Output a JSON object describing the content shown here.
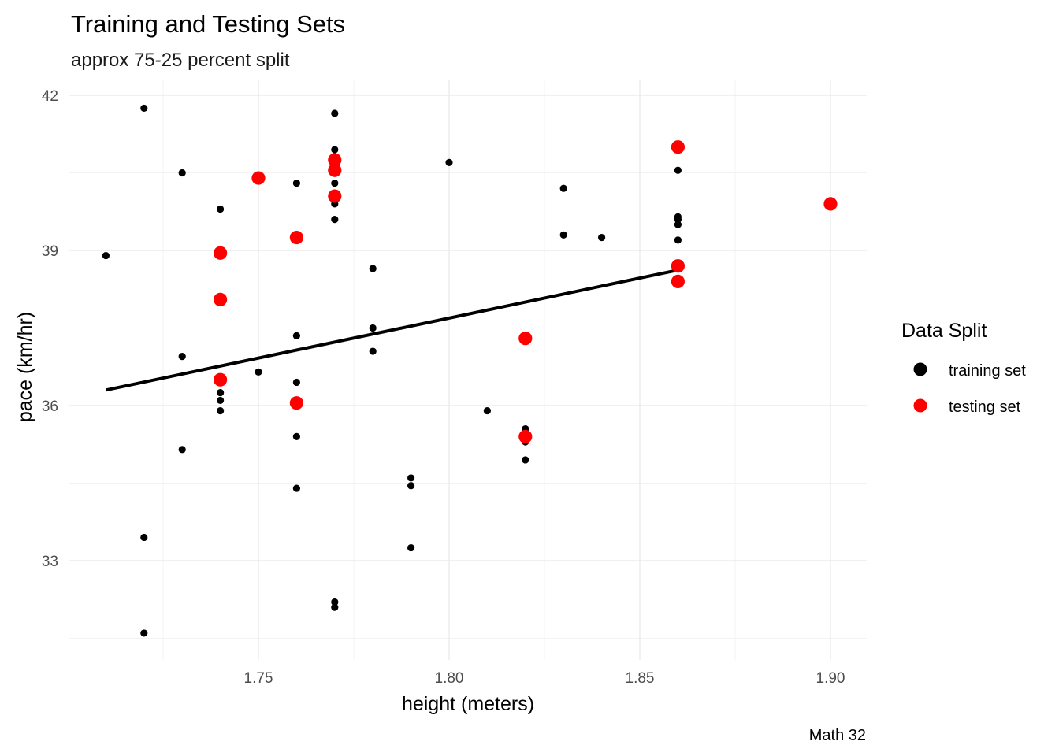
{
  "chart_data": {
    "type": "scatter",
    "title": "Training and Testing Sets",
    "subtitle": "approx 75-25 percent split",
    "xlabel": "height (meters)",
    "ylabel": "pace (km/hr)",
    "caption": "Math 32",
    "xlim": [
      1.708,
      1.918
    ],
    "ylim": [
      31.1,
      42.0
    ],
    "x_ticks": [
      1.75,
      1.8,
      1.85,
      1.9
    ],
    "x_tick_labels": [
      "1.75",
      "1.80",
      "1.85",
      "1.90"
    ],
    "y_ticks": [
      33,
      36,
      39,
      42
    ],
    "y_tick_labels": [
      "33",
      "36",
      "39",
      "42"
    ],
    "grid": true,
    "legend": {
      "title": "Data Split",
      "placement": "right",
      "entries": [
        {
          "label": "training set",
          "color": "#000000"
        },
        {
          "label": "testing set",
          "color": "#ff0000"
        }
      ]
    },
    "series": [
      {
        "name": "training set",
        "color": "#000000",
        "points": [
          [
            1.71,
            38.9
          ],
          [
            1.72,
            41.75
          ],
          [
            1.72,
            33.45
          ],
          [
            1.72,
            31.6
          ],
          [
            1.73,
            40.5
          ],
          [
            1.73,
            36.95
          ],
          [
            1.73,
            35.15
          ],
          [
            1.74,
            39.8
          ],
          [
            1.74,
            36.25
          ],
          [
            1.74,
            36.1
          ],
          [
            1.74,
            35.9
          ],
          [
            1.75,
            36.65
          ],
          [
            1.76,
            40.3
          ],
          [
            1.76,
            37.35
          ],
          [
            1.76,
            36.45
          ],
          [
            1.76,
            35.4
          ],
          [
            1.76,
            34.4
          ],
          [
            1.77,
            41.65
          ],
          [
            1.77,
            40.95
          ],
          [
            1.77,
            40.3
          ],
          [
            1.77,
            39.9
          ],
          [
            1.77,
            39.6
          ],
          [
            1.77,
            32.2
          ],
          [
            1.77,
            32.1
          ],
          [
            1.78,
            38.65
          ],
          [
            1.78,
            37.5
          ],
          [
            1.78,
            37.05
          ],
          [
            1.79,
            34.6
          ],
          [
            1.79,
            34.45
          ],
          [
            1.79,
            33.25
          ],
          [
            1.8,
            40.7
          ],
          [
            1.81,
            35.9
          ],
          [
            1.82,
            35.55
          ],
          [
            1.82,
            35.3
          ],
          [
            1.82,
            34.95
          ],
          [
            1.83,
            40.2
          ],
          [
            1.83,
            39.3
          ],
          [
            1.84,
            39.25
          ],
          [
            1.86,
            40.55
          ],
          [
            1.86,
            39.65
          ],
          [
            1.86,
            39.6
          ],
          [
            1.86,
            39.5
          ],
          [
            1.86,
            39.2
          ]
        ]
      },
      {
        "name": "testing set",
        "color": "#ff0000",
        "points": [
          [
            1.74,
            38.95
          ],
          [
            1.74,
            38.05
          ],
          [
            1.74,
            36.5
          ],
          [
            1.75,
            40.4
          ],
          [
            1.76,
            39.25
          ],
          [
            1.76,
            36.05
          ],
          [
            1.77,
            40.75
          ],
          [
            1.77,
            40.55
          ],
          [
            1.77,
            40.05
          ],
          [
            1.82,
            37.3
          ],
          [
            1.82,
            35.4
          ],
          [
            1.86,
            41.0
          ],
          [
            1.86,
            38.7
          ],
          [
            1.86,
            38.4
          ],
          [
            1.9,
            39.9
          ]
        ]
      }
    ],
    "regression_line": {
      "color": "#000000",
      "x": [
        1.71,
        1.86
      ],
      "y": [
        36.3,
        38.62
      ]
    }
  }
}
